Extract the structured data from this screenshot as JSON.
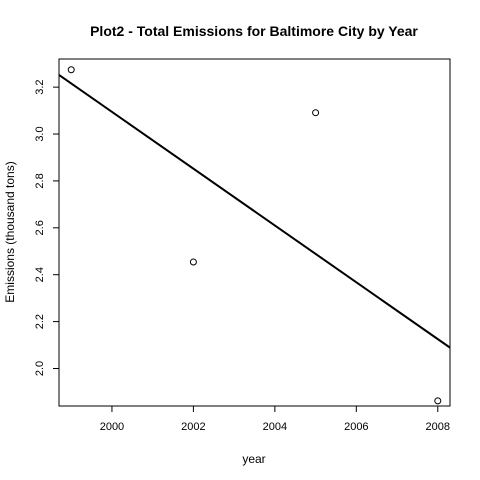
{
  "chart_data": {
    "type": "scatter",
    "title": "Plot2 - Total Emissions for Baltimore City by Year",
    "xlabel": "year",
    "ylabel": "Emissions (thousand tons)",
    "xlim": [
      1998.7,
      2008.3
    ],
    "ylim": [
      1.84,
      3.32
    ],
    "x_ticks": [
      2000,
      2002,
      2004,
      2006,
      2008
    ],
    "x_tick_labels": [
      "2000",
      "2002",
      "2004",
      "2006",
      "2008"
    ],
    "y_ticks": [
      2.0,
      2.2,
      2.4,
      2.6,
      2.8,
      3.0,
      3.2
    ],
    "y_tick_labels": [
      "2.0",
      "2.2",
      "2.4",
      "2.6",
      "2.8",
      "3.0",
      "3.2"
    ],
    "grid": false,
    "points": {
      "x": [
        1999,
        2002,
        2005,
        2008
      ],
      "y": [
        3.274,
        2.454,
        3.091,
        1.862
      ],
      "marker": "open-circle"
    },
    "regression_line": {
      "intercept_at_x_min": [
        1998.7,
        3.252
      ],
      "value_at_x_max": [
        2008.3,
        2.089
      ]
    },
    "colors": {
      "points": "#000000",
      "line": "#000000",
      "axis": "#000000"
    }
  }
}
